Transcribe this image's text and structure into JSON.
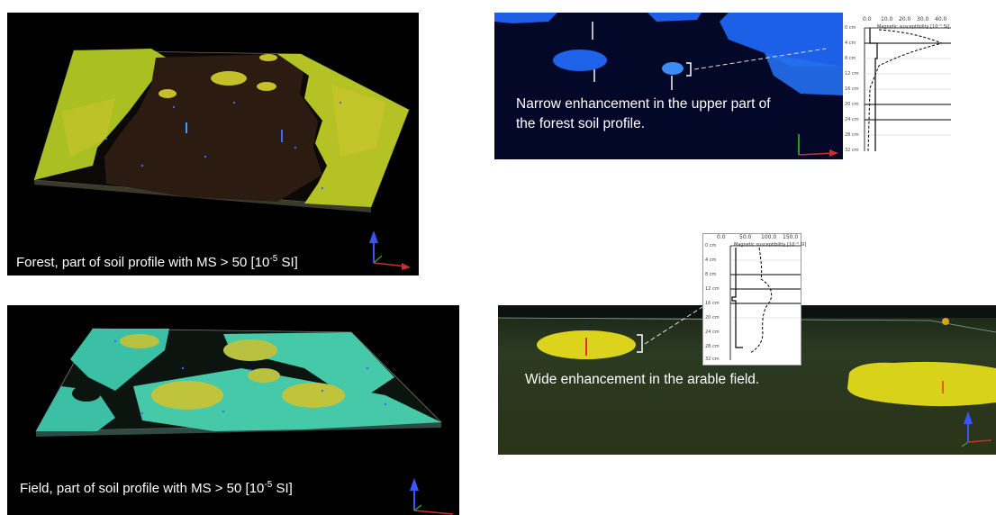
{
  "panels": {
    "forest_top_left": {
      "caption_prefix": "Forest, part of soil profile  with MS > 50 [10",
      "caption_sup": "-5",
      "caption_suffix": " SI]"
    },
    "field_bottom_left": {
      "caption_prefix": "Field, part of soil profile  with MS > 50 [10",
      "caption_sup": "-5",
      "caption_suffix": " SI]"
    },
    "forest_top_right": {
      "annotation_line1": "Narrow enhancement in the upper part of",
      "annotation_line2": "the forest soil profile.",
      "plot": {
        "x_ticks": [
          "0.0",
          "10.0",
          "20.0",
          "30.0",
          "40.0"
        ],
        "axis_title": "Magnetic susceptibility [10⁻⁵ SI]",
        "depth_ticks": [
          "0 cm",
          "4 cm",
          "8 cm",
          "12 cm",
          "16 cm",
          "20 cm",
          "24 cm",
          "28 cm",
          "32 cm"
        ]
      }
    },
    "field_bottom_right": {
      "annotation": "Wide enhancement in the arable field.",
      "plot": {
        "x_ticks": [
          "0.0",
          "50.0",
          "100.0",
          "150.0"
        ],
        "axis_title": "Magnetic susceptibility [10⁻⁵ SI]",
        "depth_ticks": [
          "0 cm",
          "4 cm",
          "8 cm",
          "12 cm",
          "16 cm",
          "20 cm",
          "24 cm",
          "28 cm",
          "32 cm"
        ]
      }
    }
  },
  "colors": {
    "background": "#000000",
    "forest_surface": "#b8c21a",
    "forest_dark": "#2a1a0e",
    "field_surface": "#45c9a8",
    "field_highlight": "#c9c43a",
    "blue_enhancement": "#1c5fe0",
    "yellow_enhancement": "#e0dc1a"
  }
}
